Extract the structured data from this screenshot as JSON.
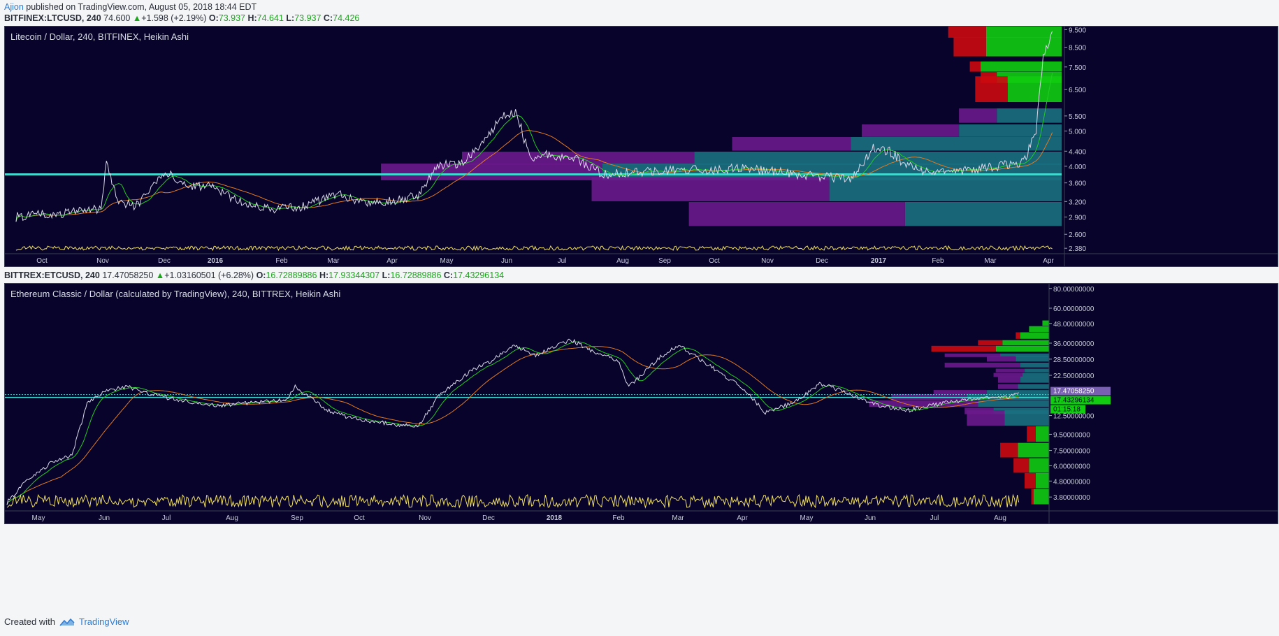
{
  "publish": {
    "author": "Ajion",
    "text": " published on TradingView.com, August 05, 2018 18:44 EDT"
  },
  "ltc_header": {
    "symbol": "BITFINEX:LTCUSD, 240",
    "price": "74.600",
    "change": "+1.598 (+2.19%)",
    "o_label": "O:",
    "o": "73.937",
    "h_label": "H:",
    "h": "74.641",
    "l_label": "L:",
    "l": "73.937",
    "c_label": "C:",
    "c": "74.426"
  },
  "etc_header": {
    "symbol": "BITTREX:ETCUSD, 240",
    "price": "17.47058250",
    "change": "+1.03160501 (+6.28%)",
    "o_label": "O:",
    "o": "16.72889886",
    "h_label": "H:",
    "h": "17.93344307",
    "l_label": "L:",
    "l": "16.72889886",
    "c_label": "C:",
    "c": "17.43296134"
  },
  "footer": {
    "created": "Created with",
    "brand": "TradingView"
  },
  "colors": {
    "background": "#08032a",
    "price_line": "#d8d8e8",
    "ma_fast": "#22cc22",
    "ma_slow": "#e07a22",
    "volume": "#f0e060",
    "horizontal_line": "#40d8d0",
    "vp_purple": "#6b1a8c",
    "vp_teal": "#1a7080",
    "vp_green": "#11cc11",
    "vp_red": "#cc0a10"
  },
  "chart_data": [
    {
      "type": "line",
      "title": "Litecoin / Dollar, 240, BITFINEX, Heikin Ashi",
      "style": "Heikin Ashi",
      "y_scale": "log",
      "x_ticks": [
        "Oct",
        "Nov",
        "Dec",
        "2016",
        "Feb",
        "Mar",
        "Apr",
        "May",
        "Jun",
        "Jul",
        "Aug",
        "Sep",
        "Oct",
        "Nov",
        "Dec",
        "2017",
        "Feb",
        "Mar",
        "Apr"
      ],
      "y_ticks": [
        "9.500",
        "8.500",
        "7.500",
        "6.500",
        "5.500",
        "5.000",
        "4.400",
        "4.000",
        "3.600",
        "3.200",
        "2.900",
        "2.600",
        "2.380"
      ],
      "horizontal_line": 3.8,
      "series": [
        {
          "x": [
            "2015-09-15",
            "2015-10-01",
            "2015-10-20",
            "2015-11-01",
            "2015-11-04",
            "2015-11-10",
            "2015-11-20",
            "2015-12-01",
            "2015-12-08",
            "2015-12-20",
            "2016-01-01",
            "2016-01-20",
            "2016-02-01",
            "2016-02-20",
            "2016-03-10",
            "2016-03-25",
            "2016-04-10",
            "2016-04-25",
            "2016-05-05",
            "2016-05-20",
            "2016-06-01",
            "2016-06-10",
            "2016-06-18",
            "2016-06-25",
            "2016-07-05",
            "2016-07-20",
            "2016-08-05",
            "2016-08-20",
            "2016-09-10",
            "2016-10-01",
            "2016-10-20",
            "2016-11-10",
            "2016-12-01",
            "2016-12-20",
            "2017-01-01",
            "2017-01-10",
            "2017-01-20",
            "2017-02-01",
            "2017-02-20",
            "2017-03-10",
            "2017-03-25",
            "2017-04-01",
            "2017-04-05",
            "2017-04-10"
          ],
          "values": [
            2.9,
            2.95,
            3.0,
            3.05,
            4.1,
            3.2,
            3.1,
            3.6,
            3.8,
            3.55,
            3.5,
            3.15,
            3.05,
            3.1,
            3.35,
            3.2,
            3.2,
            3.35,
            4.0,
            4.1,
            4.8,
            5.5,
            5.6,
            4.2,
            4.3,
            4.2,
            3.8,
            3.85,
            3.9,
            3.9,
            3.95,
            3.85,
            3.75,
            3.7,
            4.5,
            4.4,
            4.0,
            3.85,
            3.9,
            4.0,
            4.1,
            5.0,
            8.0,
            9.4
          ]
        }
      ],
      "volume_profile": [
        {
          "price": 9.5,
          "up": 0.14,
          "down": 0.07
        },
        {
          "price": 8.5,
          "up": 0.14,
          "down": 0.06
        },
        {
          "price": 7.5,
          "up": 0.15,
          "down": 0.02
        },
        {
          "price": 7.0,
          "up": 0.12,
          "down": 0.03
        },
        {
          "price": 6.5,
          "up": 0.1,
          "down": 0.06
        },
        {
          "price": 5.5,
          "up": 0.12,
          "down": 0.07
        },
        {
          "price": 5.0,
          "up": 0.19,
          "down": 0.18
        },
        {
          "price": 4.6,
          "up": 0.39,
          "down": 0.22
        },
        {
          "price": 4.2,
          "up": 0.68,
          "down": 0.43
        },
        {
          "price": 3.85,
          "up": 0.85,
          "down": 0.41
        },
        {
          "price": 3.45,
          "up": 0.43,
          "down": 0.44
        },
        {
          "price": 2.95,
          "up": 0.29,
          "down": 0.4
        }
      ]
    },
    {
      "type": "line",
      "title": "Ethereum Classic / Dollar (calculated by TradingView), 240, BITTREX, Heikin Ashi",
      "style": "Heikin Ashi",
      "y_scale": "log",
      "x_ticks": [
        "May",
        "Jun",
        "Jul",
        "Aug",
        "Sep",
        "Oct",
        "Nov",
        "Dec",
        "2018",
        "Feb",
        "Mar",
        "Apr",
        "May",
        "Jun",
        "Jul",
        "Aug"
      ],
      "y_ticks": [
        "80.00000000",
        "60.00000000",
        "48.00000000",
        "36.00000000",
        "28.50000000",
        "22.50000000",
        "12.50000000",
        "9.50000000",
        "7.50000000",
        "6.00000000",
        "4.80000000",
        "3.80000000"
      ],
      "price_labels": [
        "17.47058250",
        "17.43296134",
        "01:15:18"
      ],
      "horizontal_line": 16.3,
      "series": [
        {
          "x": [
            "2017-04-25",
            "2017-05-05",
            "2017-05-15",
            "2017-05-25",
            "2017-06-01",
            "2017-06-10",
            "2017-06-20",
            "2017-07-01",
            "2017-07-15",
            "2017-08-01",
            "2017-08-15",
            "2017-09-01",
            "2017-09-05",
            "2017-09-20",
            "2017-10-01",
            "2017-10-20",
            "2017-11-01",
            "2017-11-10",
            "2017-11-25",
            "2017-12-05",
            "2017-12-15",
            "2017-12-25",
            "2018-01-10",
            "2018-01-20",
            "2018-02-01",
            "2018-02-06",
            "2018-02-20",
            "2018-03-01",
            "2018-03-15",
            "2018-04-01",
            "2018-04-10",
            "2018-04-25",
            "2018-05-05",
            "2018-05-15",
            "2018-06-01",
            "2018-06-15",
            "2018-07-01",
            "2018-07-15",
            "2018-08-01",
            "2018-08-05"
          ],
          "values": [
            3.5,
            5.0,
            6.2,
            7.0,
            15.0,
            18.0,
            19.0,
            17.0,
            15.5,
            14.5,
            15.0,
            15.8,
            19.0,
            13.5,
            12.0,
            11.0,
            10.8,
            16.5,
            24.0,
            28.0,
            35.0,
            30.0,
            38.0,
            32.0,
            28.0,
            19.0,
            29.0,
            35.0,
            26.0,
            18.0,
            13.0,
            15.5,
            20.0,
            18.0,
            14.5,
            13.5,
            15.0,
            16.0,
            16.5,
            17.47
          ]
        }
      ],
      "volume_profile": [
        {
          "price": 48.0,
          "up": 0.03,
          "down": 0.0
        },
        {
          "price": 44.0,
          "up": 0.09,
          "down": 0.0
        },
        {
          "price": 40.0,
          "up": 0.13,
          "down": 0.02
        },
        {
          "price": 36.0,
          "up": 0.21,
          "down": 0.11
        },
        {
          "price": 33.0,
          "up": 0.24,
          "down": 0.29
        },
        {
          "price": 30.0,
          "up": 0.22,
          "down": 0.25
        },
        {
          "price": 28.5,
          "up": 0.15,
          "down": 0.13
        },
        {
          "price": 26.0,
          "up": 0.13,
          "down": 0.34
        },
        {
          "price": 24.0,
          "up": 0.11,
          "down": 0.13
        },
        {
          "price": 22.5,
          "up": 0.12,
          "down": 0.13
        },
        {
          "price": 21.0,
          "up": 0.13,
          "down": 0.1
        },
        {
          "price": 19.0,
          "up": 0.14,
          "down": 0.09
        },
        {
          "price": 17.5,
          "up": 0.28,
          "down": 0.24
        },
        {
          "price": 16.3,
          "up": 0.37,
          "down": 0.34
        },
        {
          "price": 14.8,
          "up": 0.32,
          "down": 0.49
        },
        {
          "price": 13.3,
          "up": 0.25,
          "down": 0.13
        },
        {
          "price": 12.0,
          "up": 0.2,
          "down": 0.17
        },
        {
          "price": 9.5,
          "up": 0.06,
          "down": 0.04
        },
        {
          "price": 7.5,
          "up": 0.14,
          "down": 0.08
        },
        {
          "price": 6.0,
          "up": 0.09,
          "down": 0.07
        },
        {
          "price": 4.8,
          "up": 0.06,
          "down": 0.05
        },
        {
          "price": 3.8,
          "up": 0.07,
          "down": 0.01
        }
      ]
    }
  ]
}
